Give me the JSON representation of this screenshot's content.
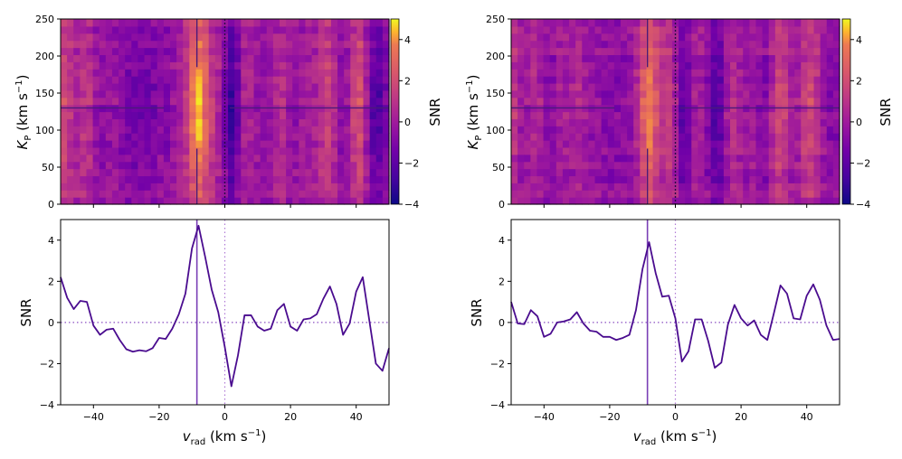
{
  "chart_data": [
    {
      "type": "heatmap",
      "panel": "top-left",
      "xlim": [
        -50,
        50
      ],
      "ylim": [
        0,
        250
      ],
      "ylabel_main": "K",
      "ylabel_sub": "P",
      "ylabel_unit": " (km s",
      "ylabel_exp": "−1",
      "ylabel_close": ")",
      "yticks": [
        "0",
        "50",
        "100",
        "150",
        "200",
        "250"
      ],
      "colorbar": {
        "label": "SNR",
        "range": [
          -4,
          5
        ],
        "ticks": [
          "−4",
          "−2",
          "0",
          "2",
          "4"
        ],
        "cmap": "plasma"
      },
      "crosshair": {
        "x": -8.5,
        "y": 130
      },
      "zero_line_x": 0,
      "peak_snr": 4.8
    },
    {
      "type": "heatmap",
      "panel": "top-right",
      "xlim": [
        -50,
        50
      ],
      "ylim": [
        0,
        250
      ],
      "ylabel_main": "K",
      "ylabel_sub": "P",
      "ylabel_unit": " (km s",
      "ylabel_exp": "−1",
      "ylabel_close": ")",
      "yticks": [
        "0",
        "50",
        "100",
        "150",
        "200",
        "250"
      ],
      "colorbar": {
        "label": "SNR",
        "range": [
          -4,
          5
        ],
        "ticks": [
          "−4",
          "−2",
          "0",
          "2",
          "4"
        ],
        "cmap": "plasma"
      },
      "crosshair": {
        "x": -8.5,
        "y": 130
      },
      "zero_line_x": 0,
      "peak_snr": 3.9
    },
    {
      "type": "line",
      "panel": "bottom-left",
      "xlabel_main": "v",
      "xlabel_sub": "rad",
      "xlabel_unit": " (km s",
      "xlabel_exp": "−1",
      "xlabel_close": ")",
      "ylabel": "SNR",
      "xlim": [
        -50,
        50
      ],
      "ylim": [
        -4,
        5
      ],
      "xticks": [
        "−40",
        "−20",
        "0",
        "20",
        "40"
      ],
      "yticks": [
        "−4",
        "−2",
        "0",
        "2",
        "4"
      ],
      "marker_x": -8.5,
      "zero_line_x": 0,
      "zero_line_y": 0,
      "series": [
        {
          "name": "SNR",
          "x": [
            -50,
            -48,
            -46,
            -44,
            -42,
            -40,
            -38,
            -36,
            -34,
            -32,
            -30,
            -28,
            -26,
            -24,
            -22,
            -20,
            -18,
            -16,
            -14,
            -12,
            -10,
            -8,
            -6,
            -4,
            -2,
            0,
            2,
            4,
            6,
            8,
            10,
            12,
            14,
            16,
            18,
            20,
            22,
            24,
            26,
            28,
            30,
            32,
            34,
            36,
            38,
            40,
            42,
            44,
            46,
            48,
            50
          ],
          "values": [
            2.2,
            1.2,
            0.65,
            1.05,
            1.0,
            -0.15,
            -0.6,
            -0.35,
            -0.3,
            -0.85,
            -1.3,
            -1.42,
            -1.35,
            -1.4,
            -1.25,
            -0.75,
            -0.8,
            -0.3,
            0.4,
            1.4,
            3.6,
            4.7,
            3.2,
            1.6,
            0.5,
            -1.2,
            -3.1,
            -1.6,
            0.35,
            0.35,
            -0.2,
            -0.4,
            -0.3,
            0.6,
            0.9,
            -0.2,
            -0.4,
            0.15,
            0.2,
            0.4,
            1.15,
            1.75,
            0.9,
            -0.6,
            -0.05,
            1.5,
            2.2,
            0.1,
            -2.0,
            -2.35,
            -1.25
          ]
        }
      ]
    },
    {
      "type": "line",
      "panel": "bottom-right",
      "xlabel_main": "v",
      "xlabel_sub": "rad",
      "xlabel_unit": " (km s",
      "xlabel_exp": "−1",
      "xlabel_close": ")",
      "ylabel": "SNR",
      "xlim": [
        -50,
        50
      ],
      "ylim": [
        -4,
        5
      ],
      "xticks": [
        "−40",
        "−20",
        "0",
        "20",
        "40"
      ],
      "yticks": [
        "−4",
        "−2",
        "0",
        "2",
        "4"
      ],
      "marker_x": -8.5,
      "zero_line_x": 0,
      "zero_line_y": 0,
      "series": [
        {
          "name": "SNR",
          "x": [
            -50,
            -48,
            -46,
            -44,
            -42,
            -40,
            -38,
            -36,
            -34,
            -32,
            -30,
            -28,
            -26,
            -24,
            -22,
            -20,
            -18,
            -16,
            -14,
            -12,
            -10,
            -8,
            -6,
            -4,
            -2,
            0,
            2,
            4,
            6,
            8,
            10,
            12,
            14,
            16,
            18,
            20,
            22,
            24,
            26,
            28,
            30,
            32,
            34,
            36,
            38,
            40,
            42,
            44,
            46,
            48,
            50
          ],
          "values": [
            1.0,
            -0.05,
            -0.08,
            0.6,
            0.3,
            -0.7,
            -0.55,
            0.0,
            0.05,
            0.15,
            0.5,
            -0.05,
            -0.4,
            -0.45,
            -0.7,
            -0.7,
            -0.85,
            -0.75,
            -0.6,
            0.6,
            2.6,
            3.9,
            2.4,
            1.25,
            1.3,
            0.2,
            -1.9,
            -1.4,
            0.15,
            0.15,
            -0.9,
            -2.2,
            -1.95,
            -0.1,
            0.85,
            0.2,
            -0.15,
            0.1,
            -0.6,
            -0.85,
            0.45,
            1.8,
            1.4,
            0.2,
            0.15,
            1.3,
            1.85,
            1.1,
            -0.15,
            -0.85,
            -0.8
          ]
        }
      ]
    }
  ]
}
